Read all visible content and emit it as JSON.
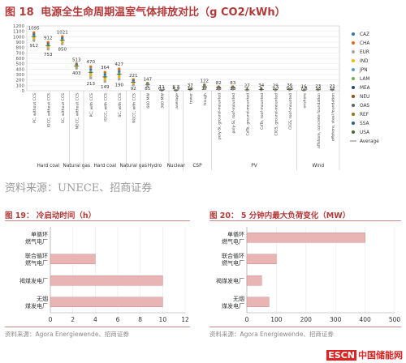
{
  "figure18": {
    "label": "图 18",
    "title": "电源全生命周期温室气体排放对比（g CO2/kWh）",
    "source": "资料来源：UNECE、招商证券",
    "chart_data": {
      "type": "scatter",
      "categories": [
        "PC, without CCS",
        "IGCC, without CCS",
        "SC, without CCS",
        "NGCC, without CCS",
        "PC, with CCS",
        "IGCC, with CCS",
        "SC, with CCS",
        "NGCC, with CCS",
        "660 MW",
        "360 MW",
        "average",
        "tower",
        "trough",
        "poly-Si, ground-mounted",
        "poly-Si, roof-mounted",
        "CdTe, ground-mounted",
        "CdTe, roof-mounted",
        "CIGS, ground-mounted",
        "CIGS, roof-mounted",
        "onshore",
        "offshore, concrete foundation",
        "offshore, steel foundation"
      ],
      "groups": [
        {
          "name": "Hard coal",
          "span": [
            0,
            2
          ]
        },
        {
          "name": "Natural gas",
          "span": [
            3,
            3
          ]
        },
        {
          "name": "Hard coal",
          "span": [
            4,
            6
          ]
        },
        {
          "name": "Natural gas",
          "span": [
            7,
            7
          ]
        },
        {
          "name": "Hydro",
          "span": [
            8,
            9
          ]
        },
        {
          "name": "Nuclear",
          "span": [
            10,
            10
          ]
        },
        {
          "name": "CSP",
          "span": [
            11,
            12
          ]
        },
        {
          "name": "PV",
          "span": [
            13,
            18
          ]
        },
        {
          "name": "Wind",
          "span": [
            19,
            21
          ]
        }
      ],
      "max_labels": [
        1095,
        912,
        1021,
        513,
        470,
        364,
        427,
        221,
        147,
        11,
        6.3,
        37,
        122,
        82,
        83,
        27,
        34,
        29,
        36,
        16,
        23,
        21
      ],
      "min_labels": [
        912,
        753,
        850,
        403,
        213,
        149,
        190,
        92,
        85,
        6.1,
        4.9,
        14,
        27,
        23,
        23,
        7,
        9,
        7.7,
        9.5,
        7.8,
        13,
        12
      ],
      "ylim": [
        0,
        1200
      ],
      "yticks": [
        0,
        100,
        200,
        300,
        400,
        500,
        600,
        700,
        800,
        900,
        1000,
        1100,
        1200
      ],
      "legend": [
        {
          "name": "CAZ",
          "color": "#2e75b6"
        },
        {
          "name": "CHA",
          "color": "#e26b0a"
        },
        {
          "name": "EUR",
          "color": "#a5a5a5"
        },
        {
          "name": "IND",
          "color": "#f2b705"
        },
        {
          "name": "JPN",
          "color": "#5b9bd5"
        },
        {
          "name": "LAM",
          "color": "#70ad47"
        },
        {
          "name": "MEA",
          "color": "#264478"
        },
        {
          "name": "NEU",
          "color": "#9e480e"
        },
        {
          "name": "OAS",
          "color": "#636363"
        },
        {
          "name": "REF",
          "color": "#997300"
        },
        {
          "name": "SSA",
          "color": "#255e91"
        },
        {
          "name": "USA",
          "color": "#43682b"
        },
        {
          "name": "Average",
          "color": "#7f7f7f"
        }
      ]
    }
  },
  "figure19": {
    "label": "图 19：",
    "title": "冷启动时间（h）",
    "source": "资料来源：Agora Energiewende、招商证券",
    "chart_data": {
      "type": "bar",
      "categories": [
        "单循环燃气电厂",
        "联合循环燃气电厂",
        "褐煤发电厂",
        "无烟煤发电厂"
      ],
      "values": [
        0,
        4,
        10,
        10
      ],
      "xlim": [
        0,
        12
      ],
      "xticks": [
        0,
        2,
        4,
        6,
        8,
        10,
        12
      ],
      "color": "#e8b4b4"
    }
  },
  "figure20": {
    "label": "图 20：",
    "title": "5 分钟内最大负荷变化（MW）",
    "source": "资料来源：Agora Energiewende、招商证券",
    "chart_data": {
      "type": "bar",
      "categories": [
        "单循环燃气电厂",
        "联合循环燃气电厂",
        "褐煤发电厂",
        "无烟煤发电厂"
      ],
      "values": [
        400,
        100,
        50,
        75
      ],
      "xlim": [
        0,
        500
      ],
      "xticks": [
        0,
        100,
        200,
        300,
        400,
        500
      ],
      "color": "#e8b4b4"
    }
  },
  "watermark": {
    "esc": "ESCN",
    "text": "中国储能网"
  }
}
